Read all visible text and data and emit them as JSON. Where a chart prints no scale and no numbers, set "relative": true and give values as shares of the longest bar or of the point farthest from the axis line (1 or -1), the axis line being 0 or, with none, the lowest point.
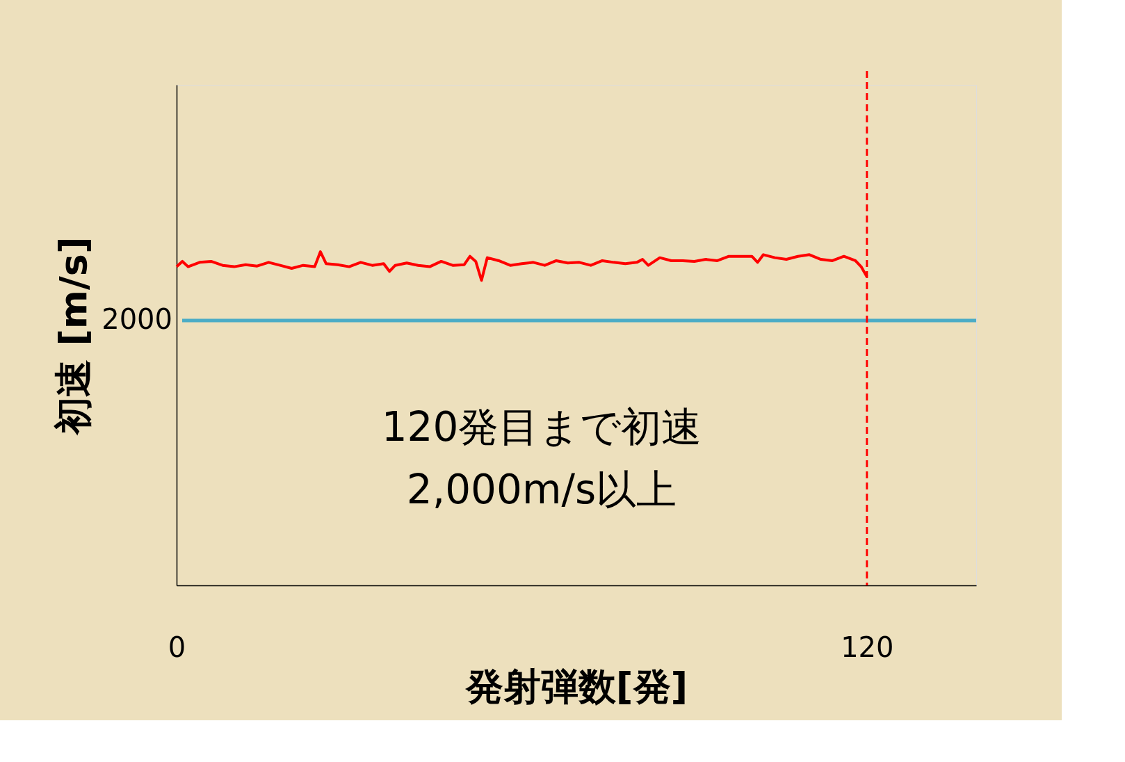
{
  "chart_data": {
    "type": "line",
    "relative": true,
    "xlabel": "発射弾数[発]",
    "ylabel": "初速 [m/s]",
    "x": [
      0,
      1,
      2,
      4,
      6,
      8,
      10,
      12,
      14,
      16,
      18,
      20,
      22,
      24,
      25,
      26,
      28,
      30,
      32,
      34,
      36,
      37,
      38,
      40,
      42,
      44,
      46,
      48,
      50,
      51,
      52,
      53,
      54,
      56,
      58,
      60,
      62,
      64,
      66,
      68,
      70,
      72,
      74,
      76,
      78,
      80,
      81,
      82,
      84,
      86,
      88,
      90,
      92,
      94,
      96,
      98,
      100,
      101,
      102,
      104,
      106,
      108,
      110,
      112,
      114,
      116,
      118,
      119,
      120
    ],
    "series": [
      {
        "color": "#ff0000",
        "values": [
          0.955,
          0.971,
          0.955,
          0.968,
          0.971,
          0.959,
          0.955,
          0.961,
          0.957,
          0.968,
          0.959,
          0.95,
          0.959,
          0.955,
          1.0,
          0.964,
          0.961,
          0.955,
          0.968,
          0.959,
          0.964,
          0.941,
          0.959,
          0.966,
          0.959,
          0.955,
          0.971,
          0.959,
          0.961,
          0.986,
          0.971,
          0.914,
          0.982,
          0.973,
          0.959,
          0.964,
          0.968,
          0.959,
          0.973,
          0.966,
          0.968,
          0.959,
          0.973,
          0.968,
          0.964,
          0.968,
          0.977,
          0.959,
          0.982,
          0.973,
          0.973,
          0.971,
          0.977,
          0.973,
          0.986,
          0.986,
          0.986,
          0.968,
          0.991,
          0.982,
          0.977,
          0.986,
          0.991,
          0.977,
          0.973,
          0.986,
          0.973,
          0.955,
          0.925
        ]
      }
    ],
    "xlim": [
      0,
      139
    ],
    "xticks": [
      0,
      120
    ],
    "ref_lines": [
      {
        "axis": "y",
        "value": 0.794,
        "color": "#4bacc6",
        "line_style": "solid"
      },
      {
        "axis": "x",
        "value": 120,
        "color": "#ff0000",
        "line_style": "dashed"
      }
    ],
    "annotations": [
      "2000",
      "120発目まで初速\n2,000m/s以上"
    ],
    "grid": false,
    "legend": false,
    "marker": "none",
    "line_style": "solid"
  }
}
